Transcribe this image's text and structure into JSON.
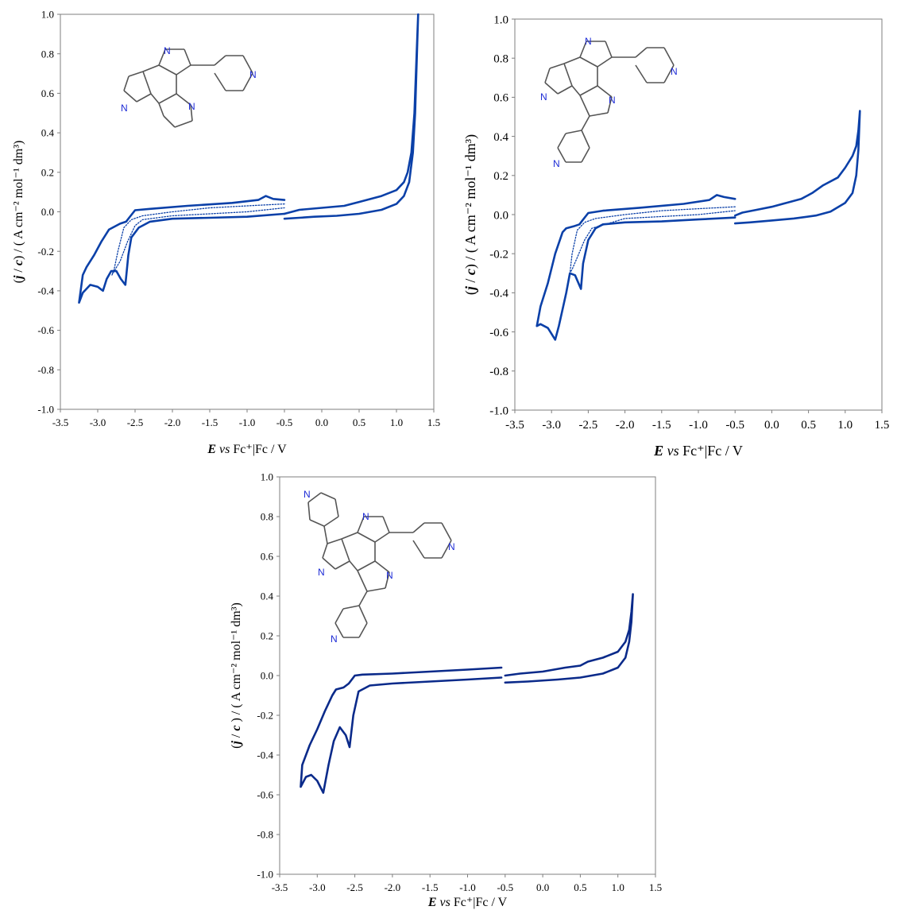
{
  "chart_data": [
    {
      "type": "line",
      "xlabel_parts": {
        "e": "E",
        "vs": "vs",
        "rest": " Fc⁺|Fc / V"
      },
      "ylabel_parts": {
        "open": "(",
        "j": "j",
        "slash": " / ",
        "c": "c",
        "close": ")",
        "unit": " / ( A cm⁻² mol⁻¹ dm³)"
      },
      "xlim": [
        -3.5,
        1.5
      ],
      "ylim": [
        -1.0,
        1.0
      ],
      "xticks": [
        "-3.5",
        "-3.0",
        "-2.5",
        "-2.0",
        "-1.5",
        "-1.0",
        "-0.5",
        "0.0",
        "0.5",
        "1.0",
        "1.5"
      ],
      "yticks": [
        "1.0",
        "0.8",
        "0.6",
        "0.4",
        "0.2",
        "0.0",
        "-0.2",
        "-0.4",
        "-0.6",
        "-0.8",
        "-1.0"
      ],
      "color": "#0b40a8",
      "grid": false,
      "series": [
        {
          "style": "solid",
          "points": [
            [
              -0.5,
              0.06
            ],
            [
              -0.65,
              0.065
            ],
            [
              -0.75,
              0.08
            ],
            [
              -0.85,
              0.06
            ],
            [
              -1.2,
              0.045
            ],
            [
              -1.8,
              0.03
            ],
            [
              -2.3,
              0.015
            ],
            [
              -2.5,
              0.008
            ],
            [
              -2.58,
              -0.03
            ],
            [
              -2.62,
              -0.05
            ],
            [
              -2.7,
              -0.06
            ],
            [
              -2.8,
              -0.08
            ],
            [
              -2.85,
              -0.09
            ],
            [
              -2.95,
              -0.15
            ],
            [
              -3.05,
              -0.22
            ],
            [
              -3.15,
              -0.28
            ],
            [
              -3.2,
              -0.32
            ],
            [
              -3.25,
              -0.46
            ],
            [
              -3.2,
              -0.41
            ],
            [
              -3.1,
              -0.37
            ],
            [
              -3.0,
              -0.38
            ],
            [
              -2.93,
              -0.4
            ],
            [
              -2.88,
              -0.34
            ],
            [
              -2.82,
              -0.3
            ],
            [
              -2.75,
              -0.3
            ],
            [
              -2.69,
              -0.34
            ],
            [
              -2.63,
              -0.37
            ],
            [
              -2.59,
              -0.22
            ],
            [
              -2.55,
              -0.13
            ],
            [
              -2.45,
              -0.08
            ],
            [
              -2.3,
              -0.05
            ],
            [
              -2.0,
              -0.035
            ],
            [
              -1.5,
              -0.03
            ],
            [
              -1.0,
              -0.025
            ],
            [
              -0.5,
              -0.01
            ]
          ]
        },
        {
          "style": "dotted",
          "points": [
            [
              -0.5,
              0.04
            ],
            [
              -1.0,
              0.03
            ],
            [
              -1.5,
              0.02
            ],
            [
              -2.0,
              0.0
            ],
            [
              -2.4,
              -0.02
            ],
            [
              -2.55,
              -0.04
            ],
            [
              -2.65,
              -0.08
            ],
            [
              -2.73,
              -0.2
            ],
            [
              -2.78,
              -0.29
            ],
            [
              -2.81,
              -0.32
            ],
            [
              -2.78,
              -0.3
            ],
            [
              -2.7,
              -0.25
            ],
            [
              -2.6,
              -0.15
            ],
            [
              -2.5,
              -0.07
            ],
            [
              -2.4,
              -0.04
            ],
            [
              -2.0,
              -0.02
            ],
            [
              -1.0,
              0.0
            ],
            [
              -0.5,
              0.02
            ]
          ]
        },
        {
          "style": "solid",
          "points": [
            [
              -0.5,
              -0.035
            ],
            [
              -0.3,
              -0.03
            ],
            [
              -0.1,
              -0.025
            ],
            [
              0.2,
              -0.02
            ],
            [
              0.5,
              -0.01
            ],
            [
              0.8,
              0.01
            ],
            [
              1.0,
              0.04
            ],
            [
              1.1,
              0.08
            ],
            [
              1.17,
              0.15
            ],
            [
              1.22,
              0.3
            ],
            [
              1.25,
              0.5
            ],
            [
              1.27,
              0.75
            ],
            [
              1.29,
              1.0
            ],
            [
              1.27,
              0.8
            ],
            [
              1.24,
              0.5
            ],
            [
              1.2,
              0.3
            ],
            [
              1.15,
              0.2
            ],
            [
              1.1,
              0.15
            ],
            [
              1.0,
              0.11
            ],
            [
              0.8,
              0.08
            ],
            [
              0.6,
              0.06
            ],
            [
              0.5,
              0.05
            ],
            [
              0.3,
              0.03
            ],
            [
              0.0,
              0.02
            ],
            [
              -0.3,
              0.01
            ],
            [
              -0.5,
              -0.01
            ]
          ]
        }
      ]
    },
    {
      "type": "line",
      "xlabel_parts": {
        "e": "E",
        "vs": "vs",
        "rest": " Fc⁺|Fc / V"
      },
      "ylabel_parts": {
        "open": "(",
        "j": "j",
        "slash": " / ",
        "c": "c",
        "close": ")",
        "unit": " / ( A cm⁻² mol⁻¹ dm³)"
      },
      "xlim": [
        -3.5,
        1.5
      ],
      "ylim": [
        -1.0,
        1.0
      ],
      "xticks": [
        "-3.5",
        "-3.0",
        "-2.5",
        "-2.0",
        "-1.5",
        "-1.0",
        "-0.5",
        "0.0",
        "0.5",
        "1.0",
        "1.5"
      ],
      "yticks": [
        "1.0",
        "0.8",
        "0.6",
        "0.4",
        "0.2",
        "0.0",
        "-0.2",
        "-0.4",
        "-0.6",
        "-0.8",
        "-1.0"
      ],
      "color": "#0b40a8",
      "grid": false,
      "series": [
        {
          "style": "solid",
          "points": [
            [
              -0.5,
              0.08
            ],
            [
              -0.65,
              0.09
            ],
            [
              -0.75,
              0.1
            ],
            [
              -0.85,
              0.075
            ],
            [
              -1.2,
              0.055
            ],
            [
              -1.8,
              0.035
            ],
            [
              -2.3,
              0.02
            ],
            [
              -2.5,
              0.008
            ],
            [
              -2.58,
              -0.03
            ],
            [
              -2.62,
              -0.05
            ],
            [
              -2.7,
              -0.06
            ],
            [
              -2.8,
              -0.07
            ],
            [
              -2.85,
              -0.09
            ],
            [
              -2.95,
              -0.2
            ],
            [
              -3.05,
              -0.35
            ],
            [
              -3.15,
              -0.47
            ],
            [
              -3.2,
              -0.57
            ],
            [
              -3.15,
              -0.56
            ],
            [
              -3.05,
              -0.58
            ],
            [
              -2.95,
              -0.64
            ],
            [
              -2.9,
              -0.57
            ],
            [
              -2.8,
              -0.4
            ],
            [
              -2.75,
              -0.3
            ],
            [
              -2.68,
              -0.31
            ],
            [
              -2.6,
              -0.38
            ],
            [
              -2.57,
              -0.25
            ],
            [
              -2.5,
              -0.13
            ],
            [
              -2.4,
              -0.07
            ],
            [
              -2.3,
              -0.05
            ],
            [
              -2.0,
              -0.04
            ],
            [
              -1.5,
              -0.035
            ],
            [
              -1.0,
              -0.025
            ],
            [
              -0.5,
              -0.015
            ]
          ]
        },
        {
          "style": "dotted",
          "points": [
            [
              -0.5,
              0.04
            ],
            [
              -1.0,
              0.03
            ],
            [
              -1.5,
              0.02
            ],
            [
              -2.0,
              0.0
            ],
            [
              -2.4,
              -0.02
            ],
            [
              -2.55,
              -0.04
            ],
            [
              -2.65,
              -0.08
            ],
            [
              -2.72,
              -0.2
            ],
            [
              -2.75,
              -0.3
            ],
            [
              -2.72,
              -0.28
            ],
            [
              -2.65,
              -0.22
            ],
            [
              -2.55,
              -0.13
            ],
            [
              -2.45,
              -0.07
            ],
            [
              -2.0,
              -0.02
            ],
            [
              -1.0,
              0.0
            ],
            [
              -0.5,
              0.02
            ]
          ]
        },
        {
          "style": "solid",
          "points": [
            [
              -0.5,
              -0.045
            ],
            [
              -0.3,
              -0.04
            ],
            [
              0.0,
              -0.03
            ],
            [
              0.3,
              -0.02
            ],
            [
              0.6,
              -0.005
            ],
            [
              0.8,
              0.015
            ],
            [
              1.0,
              0.06
            ],
            [
              1.1,
              0.11
            ],
            [
              1.15,
              0.2
            ],
            [
              1.18,
              0.33
            ],
            [
              1.2,
              0.53
            ],
            [
              1.18,
              0.43
            ],
            [
              1.15,
              0.35
            ],
            [
              1.1,
              0.3
            ],
            [
              1.0,
              0.24
            ],
            [
              0.9,
              0.19
            ],
            [
              0.7,
              0.15
            ],
            [
              0.55,
              0.11
            ],
            [
              0.4,
              0.08
            ],
            [
              0.2,
              0.06
            ],
            [
              0.0,
              0.04
            ],
            [
              -0.2,
              0.025
            ],
            [
              -0.4,
              0.01
            ],
            [
              -0.5,
              -0.005
            ]
          ]
        }
      ]
    },
    {
      "type": "line",
      "xlabel_parts": {
        "e": "E",
        "vs": "vs",
        "rest": " Fc⁺|Fc / V"
      },
      "ylabel_parts": {
        "open": "(",
        "j": "j",
        "slash": " / ",
        "c": "c",
        "close": " )",
        "unit": " / ( A cm⁻² mol⁻¹ dm³)"
      },
      "xlim": [
        -3.5,
        1.5
      ],
      "ylim": [
        -1.0,
        1.0
      ],
      "xticks": [
        "-3.5",
        "-3.0",
        "-2.5",
        "-2.0",
        "-1.5",
        "-1.0",
        "-0.5",
        "0.0",
        "0.5",
        "1.0",
        "1.5"
      ],
      "yticks": [
        "1.0",
        "0.8",
        "0.6",
        "0.4",
        "0.2",
        "0.0",
        "-0.2",
        "-0.4",
        "-0.6",
        "-0.8",
        "-1.0"
      ],
      "color": "#0a2a8a",
      "grid": false,
      "series": [
        {
          "style": "solid",
          "points": [
            [
              -0.55,
              0.04
            ],
            [
              -1.0,
              0.03
            ],
            [
              -1.5,
              0.02
            ],
            [
              -2.0,
              0.01
            ],
            [
              -2.4,
              0.005
            ],
            [
              -2.5,
              0.0
            ],
            [
              -2.58,
              -0.04
            ],
            [
              -2.65,
              -0.06
            ],
            [
              -2.75,
              -0.07
            ],
            [
              -2.8,
              -0.1
            ],
            [
              -2.9,
              -0.18
            ],
            [
              -3.0,
              -0.27
            ],
            [
              -3.1,
              -0.35
            ],
            [
              -3.2,
              -0.45
            ],
            [
              -3.22,
              -0.56
            ],
            [
              -3.15,
              -0.51
            ],
            [
              -3.08,
              -0.5
            ],
            [
              -3.0,
              -0.53
            ],
            [
              -2.92,
              -0.59
            ],
            [
              -2.85,
              -0.45
            ],
            [
              -2.78,
              -0.33
            ],
            [
              -2.7,
              -0.26
            ],
            [
              -2.62,
              -0.3
            ],
            [
              -2.57,
              -0.36
            ],
            [
              -2.52,
              -0.2
            ],
            [
              -2.45,
              -0.08
            ],
            [
              -2.3,
              -0.05
            ],
            [
              -2.0,
              -0.04
            ],
            [
              -1.5,
              -0.03
            ],
            [
              -1.0,
              -0.02
            ],
            [
              -0.55,
              -0.01
            ]
          ]
        },
        {
          "style": "solid",
          "points": [
            [
              -0.5,
              -0.035
            ],
            [
              -0.2,
              -0.03
            ],
            [
              0.2,
              -0.02
            ],
            [
              0.5,
              -0.01
            ],
            [
              0.8,
              0.01
            ],
            [
              1.0,
              0.04
            ],
            [
              1.1,
              0.09
            ],
            [
              1.15,
              0.17
            ],
            [
              1.18,
              0.27
            ],
            [
              1.2,
              0.41
            ],
            [
              1.18,
              0.32
            ],
            [
              1.15,
              0.23
            ],
            [
              1.1,
              0.17
            ],
            [
              1.0,
              0.12
            ],
            [
              0.8,
              0.09
            ],
            [
              0.7,
              0.08
            ],
            [
              0.6,
              0.07
            ],
            [
              0.5,
              0.05
            ],
            [
              0.3,
              0.04
            ],
            [
              0.0,
              0.02
            ],
            [
              -0.3,
              0.01
            ],
            [
              -0.5,
              0.0
            ]
          ]
        }
      ]
    }
  ]
}
